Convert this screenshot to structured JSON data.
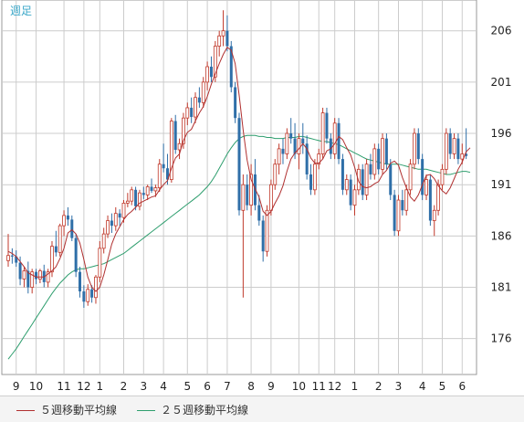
{
  "period_label": "週足",
  "colors": {
    "up": "#c0392b",
    "down": "#2f6fa8",
    "ma5": "#b03030",
    "ma25": "#2e9e6e",
    "grid": "#cccccc",
    "period_label": "#3aa7c8",
    "axis_text": "#222222"
  },
  "legend": {
    "ma5_label": "５週移動平均線",
    "ma25_label": "２５週移動平均線"
  },
  "chart_data": {
    "type": "candlestick",
    "ylim": [
      172.5,
      209.0
    ],
    "y_ticks": [
      176,
      181,
      186,
      191,
      196,
      201,
      206
    ],
    "x_tick_labels": [
      "9",
      "10",
      "11",
      "12",
      "1",
      "2",
      "3",
      "4",
      "5",
      "6",
      "7",
      "8",
      "9",
      "10",
      "11",
      "12",
      "1",
      "2",
      "3",
      "4",
      "5",
      "6"
    ],
    "x_tick_index": [
      2,
      7,
      14,
      19,
      23,
      29,
      34,
      39,
      45,
      50,
      55,
      61,
      66,
      73,
      78,
      82,
      87,
      93,
      98,
      104,
      109,
      114
    ],
    "x_count": 117,
    "ohlc": [
      [
        183.6,
        186.2,
        183.0,
        184.1
      ],
      [
        184.1,
        184.8,
        183.3,
        184.0
      ],
      [
        184.0,
        184.6,
        183.0,
        183.4
      ],
      [
        183.4,
        184.0,
        181.2,
        181.8
      ],
      [
        181.8,
        183.0,
        181.0,
        182.6
      ],
      [
        182.6,
        183.5,
        180.4,
        181.0
      ],
      [
        181.0,
        182.8,
        180.4,
        182.5
      ],
      [
        182.5,
        182.8,
        181.3,
        181.8
      ],
      [
        181.8,
        182.8,
        181.4,
        182.6
      ],
      [
        182.6,
        183.2,
        181.0,
        181.5
      ],
      [
        181.5,
        182.8,
        181.0,
        182.5
      ],
      [
        182.5,
        185.5,
        182.0,
        185.0
      ],
      [
        185.0,
        186.5,
        184.0,
        184.4
      ],
      [
        184.4,
        187.2,
        184.0,
        187.0
      ],
      [
        187.0,
        188.5,
        186.0,
        188.0
      ],
      [
        188.0,
        188.8,
        187.0,
        187.6
      ],
      [
        187.6,
        188.0,
        185.5,
        185.8
      ],
      [
        185.8,
        186.2,
        182.0,
        182.5
      ],
      [
        182.5,
        183.0,
        180.0,
        180.6
      ],
      [
        180.6,
        181.2,
        179.0,
        179.6
      ],
      [
        179.6,
        181.3,
        179.2,
        180.8
      ],
      [
        180.8,
        181.2,
        179.5,
        180.0
      ],
      [
        180.0,
        182.2,
        179.4,
        182.0
      ],
      [
        182.0,
        185.5,
        181.5,
        184.8
      ],
      [
        184.8,
        186.8,
        184.3,
        186.2
      ],
      [
        186.2,
        188.0,
        185.8,
        187.5
      ],
      [
        187.5,
        188.2,
        186.3,
        187.0
      ],
      [
        187.0,
        188.8,
        186.5,
        188.2
      ],
      [
        188.2,
        188.6,
        187.0,
        187.8
      ],
      [
        187.8,
        189.5,
        187.3,
        189.2
      ],
      [
        189.2,
        190.2,
        188.8,
        189.4
      ],
      [
        189.4,
        190.8,
        189.0,
        190.5
      ],
      [
        190.5,
        190.8,
        188.5,
        188.9
      ],
      [
        188.9,
        190.5,
        188.5,
        190.2
      ],
      [
        190.2,
        190.8,
        189.6,
        190.0
      ],
      [
        190.0,
        191.0,
        189.5,
        190.8
      ],
      [
        190.8,
        191.6,
        190.2,
        190.4
      ],
      [
        190.4,
        191.0,
        189.8,
        190.7
      ],
      [
        190.7,
        193.5,
        190.3,
        193.0
      ],
      [
        193.0,
        195.0,
        192.2,
        192.6
      ],
      [
        192.6,
        194.0,
        191.0,
        191.5
      ],
      [
        191.5,
        197.5,
        191.2,
        197.2
      ],
      [
        197.2,
        197.8,
        194.0,
        194.4
      ],
      [
        194.4,
        195.5,
        193.5,
        195.0
      ],
      [
        195.0,
        198.0,
        194.5,
        197.5
      ],
      [
        197.5,
        199.0,
        196.8,
        198.5
      ],
      [
        198.5,
        199.5,
        197.0,
        197.6
      ],
      [
        197.6,
        200.0,
        197.0,
        199.5
      ],
      [
        199.5,
        200.5,
        198.5,
        199.0
      ],
      [
        199.0,
        201.5,
        198.5,
        201.0
      ],
      [
        201.0,
        203.0,
        200.2,
        202.5
      ],
      [
        202.5,
        203.5,
        201.0,
        201.5
      ],
      [
        201.5,
        205.0,
        201.0,
        204.5
      ],
      [
        204.5,
        206.0,
        203.5,
        205.5
      ],
      [
        205.5,
        208.0,
        204.5,
        206.0
      ],
      [
        206.0,
        207.5,
        204.0,
        204.5
      ],
      [
        204.5,
        205.0,
        200.0,
        200.5
      ],
      [
        200.5,
        201.0,
        197.0,
        197.5
      ],
      [
        197.5,
        198.0,
        188.0,
        188.5
      ],
      [
        188.5,
        192.0,
        180.0,
        191.0
      ],
      [
        191.0,
        192.0,
        188.5,
        189.0
      ],
      [
        189.0,
        193.0,
        188.0,
        192.0
      ],
      [
        192.0,
        193.5,
        188.5,
        189.0
      ],
      [
        189.0,
        190.0,
        187.0,
        187.5
      ],
      [
        187.5,
        188.0,
        183.5,
        184.5
      ],
      [
        184.5,
        189.0,
        184.0,
        188.5
      ],
      [
        188.5,
        191.5,
        188.0,
        191.0
      ],
      [
        191.0,
        193.5,
        190.5,
        193.0
      ],
      [
        193.0,
        195.0,
        192.0,
        194.5
      ],
      [
        194.5,
        195.5,
        193.0,
        194.0
      ],
      [
        194.0,
        196.5,
        193.5,
        196.0
      ],
      [
        196.0,
        197.5,
        195.0,
        195.5
      ],
      [
        195.5,
        197.0,
        193.5,
        194.0
      ],
      [
        194.0,
        196.0,
        192.5,
        195.5
      ],
      [
        195.5,
        197.0,
        194.0,
        195.0
      ],
      [
        195.0,
        195.8,
        191.5,
        192.0
      ],
      [
        192.0,
        193.0,
        190.0,
        190.5
      ],
      [
        190.5,
        193.5,
        190.0,
        193.0
      ],
      [
        193.0,
        194.5,
        192.5,
        194.0
      ],
      [
        194.0,
        198.5,
        193.5,
        198.0
      ],
      [
        198.0,
        198.5,
        195.0,
        195.5
      ],
      [
        195.5,
        196.0,
        193.5,
        194.0
      ],
      [
        194.0,
        197.5,
        193.5,
        197.0
      ],
      [
        197.0,
        197.5,
        193.0,
        193.5
      ],
      [
        193.5,
        194.0,
        190.0,
        190.5
      ],
      [
        190.5,
        192.0,
        190.0,
        191.5
      ],
      [
        191.5,
        192.0,
        188.5,
        189.0
      ],
      [
        189.0,
        191.0,
        188.0,
        190.5
      ],
      [
        190.5,
        193.0,
        190.0,
        192.5
      ],
      [
        192.5,
        193.0,
        189.5,
        190.0
      ],
      [
        190.0,
        193.5,
        189.5,
        193.0
      ],
      [
        193.0,
        194.0,
        191.5,
        192.0
      ],
      [
        192.0,
        195.0,
        191.5,
        194.5
      ],
      [
        194.5,
        195.0,
        192.0,
        192.5
      ],
      [
        192.5,
        196.0,
        192.0,
        195.5
      ],
      [
        195.5,
        196.0,
        192.5,
        193.0
      ],
      [
        193.0,
        193.5,
        189.5,
        190.0
      ],
      [
        190.0,
        190.5,
        186.0,
        186.5
      ],
      [
        186.5,
        190.0,
        186.0,
        189.5
      ],
      [
        189.5,
        190.5,
        188.0,
        188.5
      ],
      [
        188.5,
        191.0,
        188.0,
        190.5
      ],
      [
        190.5,
        193.5,
        190.0,
        193.0
      ],
      [
        193.0,
        196.5,
        192.5,
        196.0
      ],
      [
        196.0,
        196.5,
        193.0,
        193.5
      ],
      [
        193.5,
        194.0,
        189.5,
        190.0
      ],
      [
        190.0,
        192.0,
        189.5,
        191.5
      ],
      [
        191.5,
        192.0,
        187.0,
        187.5
      ],
      [
        187.5,
        189.0,
        186.0,
        188.5
      ],
      [
        188.5,
        191.5,
        188.0,
        191.0
      ],
      [
        191.0,
        193.0,
        190.5,
        192.5
      ],
      [
        192.5,
        196.5,
        192.0,
        196.0
      ],
      [
        196.0,
        196.5,
        193.5,
        194.0
      ],
      [
        194.0,
        196.0,
        193.5,
        195.5
      ],
      [
        195.5,
        196.0,
        193.0,
        193.5
      ],
      [
        193.5,
        195.0,
        193.0,
        194.0
      ],
      [
        194.0,
        196.5,
        193.5,
        193.8
      ]
    ],
    "ma5": [
      184.5,
      184.3,
      184.0,
      183.5,
      183.0,
      182.4,
      182.2,
      182.0,
      182.0,
      182.0,
      182.3,
      182.6,
      183.0,
      183.8,
      184.8,
      186.3,
      186.6,
      186.2,
      185.3,
      183.7,
      182.0,
      181.0,
      180.6,
      181.0,
      182.2,
      183.7,
      185.2,
      186.2,
      186.9,
      187.6,
      188.1,
      188.4,
      188.8,
      189.2,
      189.4,
      189.6,
      189.8,
      189.9,
      190.5,
      191.0,
      191.4,
      192.6,
      193.6,
      194.0,
      195.3,
      196.1,
      196.4,
      197.2,
      198.0,
      198.6,
      199.6,
      200.8,
      201.8,
      202.8,
      203.7,
      204.4,
      204.1,
      202.8,
      199.7,
      196.3,
      193.4,
      191.5,
      190.6,
      189.8,
      188.4,
      188.0,
      188.4,
      189.2,
      189.9,
      190.9,
      192.3,
      193.5,
      194.1,
      194.5,
      195.0,
      194.5,
      193.6,
      193.1,
      193.1,
      193.5,
      194.3,
      194.5,
      195.0,
      195.7,
      195.4,
      194.6,
      193.9,
      192.7,
      191.3,
      190.8,
      190.7,
      190.8,
      191.1,
      191.3,
      192.0,
      192.4,
      193.1,
      193.3,
      192.9,
      191.7,
      190.7,
      189.8,
      189.4,
      190.0,
      191.0,
      191.9,
      192.0,
      191.6,
      190.9,
      190.4,
      190.1,
      190.7,
      191.6,
      192.5,
      193.2,
      194.2,
      194.6
    ],
    "ma25": [
      174.0,
      174.5,
      175.0,
      175.6,
      176.2,
      176.8,
      177.4,
      178.0,
      178.6,
      179.2,
      179.8,
      180.4,
      180.9,
      181.4,
      181.8,
      182.2,
      182.5,
      182.7,
      182.8,
      182.8,
      182.9,
      183.0,
      183.1,
      183.2,
      183.3,
      183.5,
      183.7,
      183.9,
      184.1,
      184.3,
      184.6,
      184.9,
      185.2,
      185.5,
      185.8,
      186.1,
      186.4,
      186.7,
      187.0,
      187.3,
      187.6,
      187.9,
      188.2,
      188.5,
      188.8,
      189.1,
      189.4,
      189.7,
      190.0,
      190.4,
      190.8,
      191.3,
      191.9,
      192.6,
      193.3,
      194.0,
      194.6,
      195.1,
      195.5,
      195.7,
      195.8,
      195.8,
      195.8,
      195.7,
      195.7,
      195.6,
      195.6,
      195.5,
      195.5,
      195.5,
      195.6,
      195.6,
      195.6,
      195.7,
      195.7,
      195.6,
      195.5,
      195.4,
      195.3,
      195.2,
      195.2,
      195.1,
      195.0,
      194.9,
      194.7,
      194.5,
      194.3,
      194.1,
      193.9,
      193.7,
      193.5,
      193.4,
      193.3,
      193.2,
      193.1,
      193.0,
      193.0,
      193.0,
      193.0,
      192.9,
      192.8,
      192.7,
      192.6,
      192.5,
      192.5,
      192.5,
      192.4,
      192.3,
      192.2,
      192.1,
      192.0,
      192.0,
      192.1,
      192.2,
      192.3,
      192.3,
      192.2
    ]
  }
}
